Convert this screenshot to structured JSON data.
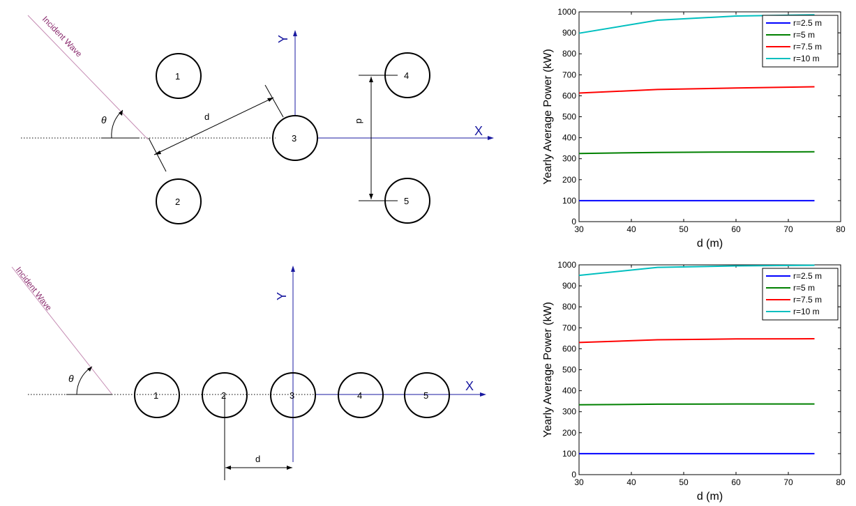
{
  "diagrams": [
    {
      "wave_label": "Incident Wave",
      "angle_label": "θ",
      "axis_x": "X",
      "axis_y": "Y",
      "spacing_labels": [
        "d",
        "d"
      ],
      "buoy_labels": [
        "1",
        "2",
        "3",
        "4",
        "5"
      ]
    },
    {
      "wave_label": "Incident Wave",
      "angle_label": "θ",
      "axis_x": "X",
      "axis_y": "Y",
      "spacing_labels": [
        "d"
      ],
      "buoy_labels": [
        "1",
        "2",
        "3",
        "4",
        "5"
      ]
    }
  ],
  "colors": {
    "diagram_line": "#000000",
    "axis_blue": "#1a1aa0",
    "wave_line": "#c48ab2",
    "wave_text": "#8a2c6e"
  },
  "chart_data": [
    {
      "type": "line",
      "xlabel": "d (m)",
      "ylabel": "Yearly Average Power (kW)",
      "xlim": [
        30,
        80
      ],
      "ylim": [
        0,
        1000
      ],
      "xticks": [
        30,
        40,
        50,
        60,
        70,
        80
      ],
      "yticks": [
        0,
        100,
        200,
        300,
        400,
        500,
        600,
        700,
        800,
        900,
        1000
      ],
      "legend_position": "top-right",
      "series": [
        {
          "name": "r=2.5 m",
          "color": "#0000ff",
          "x": [
            30,
            45,
            60,
            75
          ],
          "y": [
            100,
            100,
            100,
            100
          ]
        },
        {
          "name": "r=5 m",
          "color": "#008000",
          "x": [
            30,
            45,
            60,
            75
          ],
          "y": [
            325,
            330,
            332,
            333
          ]
        },
        {
          "name": "r=7.5 m",
          "color": "#ff0000",
          "x": [
            30,
            45,
            60,
            75
          ],
          "y": [
            613,
            630,
            637,
            643
          ]
        },
        {
          "name": "r=10 m",
          "color": "#00bfbf",
          "x": [
            30,
            45,
            60,
            75
          ],
          "y": [
            898,
            960,
            980,
            986
          ]
        }
      ]
    },
    {
      "type": "line",
      "xlabel": "d (m)",
      "ylabel": "Yearly Average Power (kW)",
      "xlim": [
        30,
        80
      ],
      "ylim": [
        0,
        1000
      ],
      "xticks": [
        30,
        40,
        50,
        60,
        70,
        80
      ],
      "yticks": [
        0,
        100,
        200,
        300,
        400,
        500,
        600,
        700,
        800,
        900,
        1000
      ],
      "legend_position": "top-right",
      "series": [
        {
          "name": "r=2.5 m",
          "color": "#0000ff",
          "x": [
            30,
            45,
            60,
            75
          ],
          "y": [
            100,
            100,
            100,
            100
          ]
        },
        {
          "name": "r=5 m",
          "color": "#008000",
          "x": [
            30,
            45,
            60,
            75
          ],
          "y": [
            333,
            336,
            337,
            337
          ]
        },
        {
          "name": "r=7.5 m",
          "color": "#ff0000",
          "x": [
            30,
            45,
            60,
            75
          ],
          "y": [
            630,
            643,
            647,
            648
          ]
        },
        {
          "name": "r=10 m",
          "color": "#00bfbf",
          "x": [
            30,
            45,
            60,
            75
          ],
          "y": [
            950,
            988,
            995,
            998
          ]
        }
      ]
    }
  ]
}
